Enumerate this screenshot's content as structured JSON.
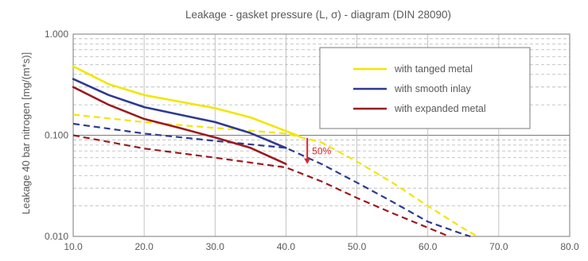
{
  "chart_data": {
    "type": "line",
    "title": "Leakage - gasket pressure (L, σ) - diagram (DIN 28090)",
    "xlabel": "",
    "ylabel": "Leakage 40 bar nitrogen [mg/(m*s)]",
    "xlim": [
      10,
      80
    ],
    "ylim": [
      0.01,
      1.0
    ],
    "y_scale": "log",
    "grid": true,
    "legend_position": "top-right",
    "x_ticks": [
      "10.0",
      "20.0",
      "30.0",
      "40.0",
      "50.0",
      "60.0",
      "70.0",
      "80.0"
    ],
    "x_tick_values": [
      10,
      20,
      30,
      40,
      50,
      60,
      70,
      80
    ],
    "y_ticks": [
      "1.000",
      "0.100",
      "0.010"
    ],
    "y_tick_values": [
      1.0,
      0.1,
      0.01
    ],
    "series": [
      {
        "name": "with tanged metal",
        "color": "#f2e600",
        "measured": {
          "x": [
            10,
            15,
            20,
            25,
            30,
            35,
            40,
            42
          ],
          "y": [
            0.48,
            0.32,
            0.25,
            0.215,
            0.185,
            0.15,
            0.11,
            0.097
          ]
        },
        "extrapolated": {
          "x": [
            10,
            20,
            30,
            40,
            45,
            50,
            55,
            60,
            65,
            67
          ],
          "y": [
            0.16,
            0.135,
            0.118,
            0.104,
            0.085,
            0.055,
            0.034,
            0.02,
            0.012,
            0.01
          ]
        }
      },
      {
        "name": "with smooth inlay",
        "color": "#2e3a91",
        "measured": {
          "x": [
            10,
            15,
            20,
            25,
            30,
            35,
            40
          ],
          "y": [
            0.36,
            0.25,
            0.19,
            0.16,
            0.135,
            0.105,
            0.075
          ]
        },
        "extrapolated": {
          "x": [
            10,
            20,
            30,
            40,
            45,
            50,
            55,
            60,
            65,
            66
          ],
          "y": [
            0.13,
            0.104,
            0.088,
            0.075,
            0.052,
            0.034,
            0.022,
            0.014,
            0.0105,
            0.01
          ]
        }
      },
      {
        "name": "with expanded metal",
        "color": "#9b1b1f",
        "measured": {
          "x": [
            10,
            15,
            20,
            25,
            30,
            35,
            40
          ],
          "y": [
            0.3,
            0.2,
            0.145,
            0.118,
            0.095,
            0.075,
            0.052
          ]
        },
        "extrapolated": {
          "x": [
            10,
            20,
            30,
            40,
            45,
            50,
            55,
            60,
            63
          ],
          "y": [
            0.1,
            0.074,
            0.06,
            0.048,
            0.035,
            0.024,
            0.017,
            0.0122,
            0.01
          ]
        }
      }
    ],
    "annotations": [
      {
        "text": "50%",
        "color": "#d9262a",
        "x": 43,
        "y_from": 0.094,
        "y_to": 0.052
      }
    ]
  }
}
